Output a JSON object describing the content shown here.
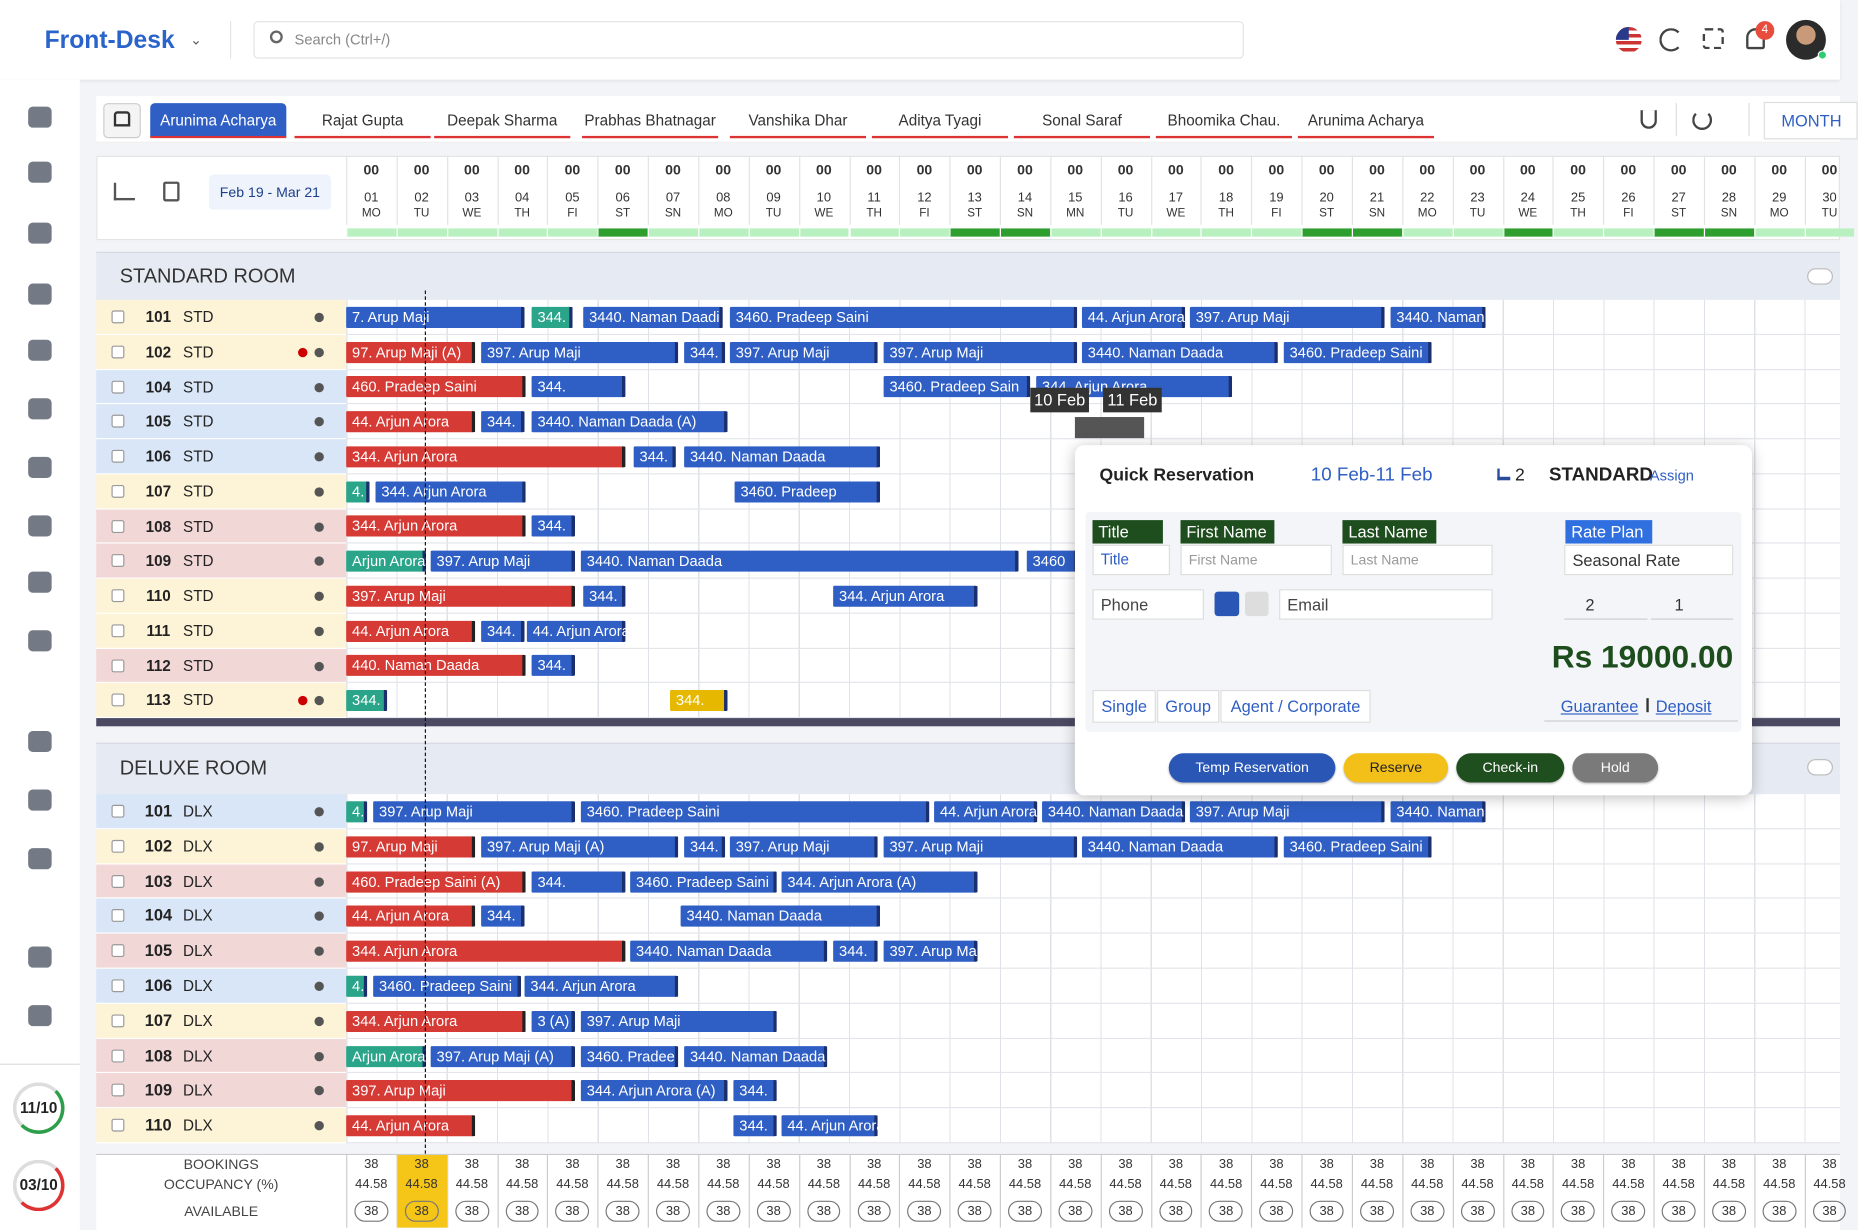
{
  "header": {
    "app_title": "Front-Desk",
    "search_placeholder": "Search (Ctrl+/)",
    "notifications": "4"
  },
  "tabs": [
    "Arunima Acharya",
    "Rajat Gupta",
    "Deepak Sharma",
    "Prabhas Bhatnagar",
    "Vanshika Dhar",
    "Aditya Tyagi",
    "Sonal Saraf",
    "Bhoomika Chau.",
    "Arunima Acharya"
  ],
  "view": "MONTH",
  "date_range": "Feb 19 - Mar 21",
  "dates": {
    "hours": [
      "00",
      "00",
      "00",
      "00",
      "00",
      "00",
      "00",
      "00",
      "00",
      "00",
      "00",
      "00",
      "00",
      "00",
      "00",
      "00",
      "00",
      "00",
      "00",
      "00",
      "00",
      "00",
      "00",
      "00",
      "00",
      "00",
      "00",
      "00",
      "00",
      "00"
    ],
    "days": [
      "01",
      "02",
      "03",
      "04",
      "05",
      "06",
      "07",
      "08",
      "09",
      "10",
      "11",
      "12",
      "13",
      "14",
      "15",
      "16",
      "17",
      "18",
      "19",
      "20",
      "21",
      "22",
      "23",
      "24",
      "25",
      "26",
      "27",
      "28",
      "29",
      "30"
    ],
    "weekdays": [
      "MO",
      "TU",
      "WE",
      "TH",
      "FI",
      "ST",
      "SN",
      "MO",
      "TU",
      "WE",
      "TH",
      "FI",
      "ST",
      "SN",
      "MN",
      "TU",
      "WE",
      "TH",
      "FI",
      "ST",
      "SN",
      "MO",
      "TU",
      "WE",
      "TH",
      "FI",
      "ST",
      "SN",
      "MO",
      "TU"
    ]
  },
  "sections": [
    {
      "title": "STANDARD ROOM",
      "rooms": [
        {
          "number": "101",
          "type": "STD",
          "bookings": [
            "7. Arup Maji",
            "344.",
            "3440. Naman Daadi",
            "3460. Pradeep Saini",
            "44. Arjun Arora",
            "397. Arup Maji",
            "3440. Naman"
          ]
        },
        {
          "number": "102",
          "type": "STD",
          "bookings": [
            "97. Arup Maji (A)",
            "397. Arup Maji",
            "344.",
            "397. Arup Maji",
            "397. Arup Maji",
            "3440. Naman Daada",
            "3460. Pradeep Saini"
          ]
        },
        {
          "number": "104",
          "type": "STD",
          "bookings": [
            "460. Pradeep Saini",
            "344.",
            "3460. Pradeep Sain",
            "344. Arjun Arora"
          ]
        },
        {
          "number": "105",
          "type": "STD",
          "bookings": [
            "44. Arjun Arora",
            "344.",
            "3440. Naman Daada (A)"
          ]
        },
        {
          "number": "106",
          "type": "STD",
          "bookings": [
            "344. Arjun Arora",
            "344.",
            "3440. Naman Daada"
          ]
        },
        {
          "number": "107",
          "type": "STD",
          "bookings": [
            "4.",
            "344. Arjun Arora",
            "3460. Pradeep"
          ]
        },
        {
          "number": "108",
          "type": "STD",
          "bookings": [
            "344. Arjun Arora",
            "344."
          ]
        },
        {
          "number": "109",
          "type": "STD",
          "bookings": [
            "Arjun Arora",
            "397. Arup Maji",
            "3440. Naman Daada",
            "3460"
          ]
        },
        {
          "number": "110",
          "type": "STD",
          "bookings": [
            "397. Arup Maji",
            "344.",
            "344. Arjun Arora"
          ]
        },
        {
          "number": "111",
          "type": "STD",
          "bookings": [
            "44. Arjun Arora",
            "344.",
            "44. Arjun Arora"
          ]
        },
        {
          "number": "112",
          "type": "STD",
          "bookings": [
            "440. Naman Daada",
            "344."
          ]
        },
        {
          "number": "113",
          "type": "STD",
          "bookings": [
            "344.",
            "344."
          ]
        }
      ]
    },
    {
      "title": "DELUXE  ROOM",
      "rooms": [
        {
          "number": "101",
          "type": "DLX",
          "bookings": [
            "4.",
            "397. Arup Maji",
            "3460. Pradeep Saini",
            "44. Arjun Arora",
            "3440. Naman Daada",
            "397. Arup Maji",
            "3440. Naman"
          ]
        },
        {
          "number": "102",
          "type": "DLX",
          "bookings": [
            "97. Arup Maji",
            "397. Arup Maji (A)",
            "344.",
            "397. Arup Maji",
            "397. Arup Maji",
            "3440. Naman Daada",
            "3460. Pradeep Saini"
          ]
        },
        {
          "number": "103",
          "type": "DLX",
          "bookings": [
            "460. Pradeep Saini (A)",
            "344.",
            "3460. Pradeep Saini",
            "344. Arjun Arora (A)"
          ]
        },
        {
          "number": "104",
          "type": "DLX",
          "bookings": [
            "44. Arjun Arora",
            "344.",
            "3440. Naman Daada"
          ]
        },
        {
          "number": "105",
          "type": "DLX",
          "bookings": [
            "344. Arjun Arora",
            "3440. Naman Daada",
            "344.",
            "397. Arup Ma"
          ]
        },
        {
          "number": "106",
          "type": "DLX",
          "bookings": [
            "4.",
            "3460. Pradeep Saini",
            "344. Arjun Arora"
          ]
        },
        {
          "number": "107",
          "type": "DLX",
          "bookings": [
            "344. Arjun Arora",
            "3 (A)",
            "397. Arup Maji"
          ]
        },
        {
          "number": "108",
          "type": "DLX",
          "bookings": [
            "Arjun Arora",
            "397. Arup Maji (A)",
            "3460. Pradee",
            "3440. Naman Daada"
          ]
        },
        {
          "number": "109",
          "type": "DLX",
          "bookings": [
            "397. Arup Maji",
            "344. Arjun Arora (A)",
            "344."
          ]
        },
        {
          "number": "110",
          "type": "DLX",
          "bookings": [
            "44. Arjun Arora",
            "344.",
            "44. Arjun Arora"
          ]
        }
      ]
    }
  ],
  "summary": {
    "labels": {
      "bookings": "BOOKINGS",
      "occupancy": "OCCUPANCY (%)",
      "available": "AVAILABLE"
    },
    "bookings": [
      38,
      38,
      38,
      38,
      38,
      38,
      38,
      38,
      38,
      38,
      38,
      38,
      38,
      38,
      38,
      38,
      38,
      38,
      38,
      38,
      38,
      38,
      38,
      38,
      38,
      38,
      38,
      38,
      38,
      38
    ],
    "occupancy": [
      44.58,
      44.58,
      44.58,
      44.58,
      44.58,
      44.58,
      44.58,
      44.58,
      44.58,
      44.58,
      44.58,
      44.58,
      44.58,
      44.58,
      44.58,
      44.58,
      44.58,
      44.58,
      44.58,
      44.58,
      44.58,
      44.58,
      44.58,
      44.58,
      44.58,
      44.58,
      44.58,
      44.58,
      44.58,
      44.58
    ],
    "available": [
      38,
      38,
      38,
      38,
      38,
      38,
      38,
      38,
      38,
      38,
      38,
      38,
      38,
      38,
      38,
      38,
      38,
      38,
      38,
      38,
      38,
      38,
      38,
      38,
      38,
      38,
      38,
      38,
      38,
      38
    ]
  },
  "tooltips": [
    "10 Feb",
    "11 Feb"
  ],
  "badges": [
    "11/10",
    "03/10"
  ],
  "quick_reservation": {
    "title": "Quick Reservation",
    "dates": "10 Feb-11 Feb",
    "beds": "2",
    "room_type": "STANDARD",
    "assign": "Assign",
    "labels": {
      "title": "Title",
      "first_name": "First Name",
      "last_name": "Last Name",
      "rate_plan": "Rate Plan"
    },
    "placeholders": {
      "title": "Title",
      "first_name": "First Name",
      "last_name": "Last Name",
      "phone": "Phone",
      "email": "Email"
    },
    "rate_plan": "Seasonal Rate",
    "adults": "2",
    "children": "1",
    "total": "Rs 19000.00",
    "booking_types": [
      "Single",
      "Group",
      "Agent / Corporate"
    ],
    "guarantee": "Guarantee",
    "deposit": "Deposit",
    "actions": [
      "Temp Reservation",
      "Reserve",
      "Check-in",
      "Hold"
    ]
  }
}
